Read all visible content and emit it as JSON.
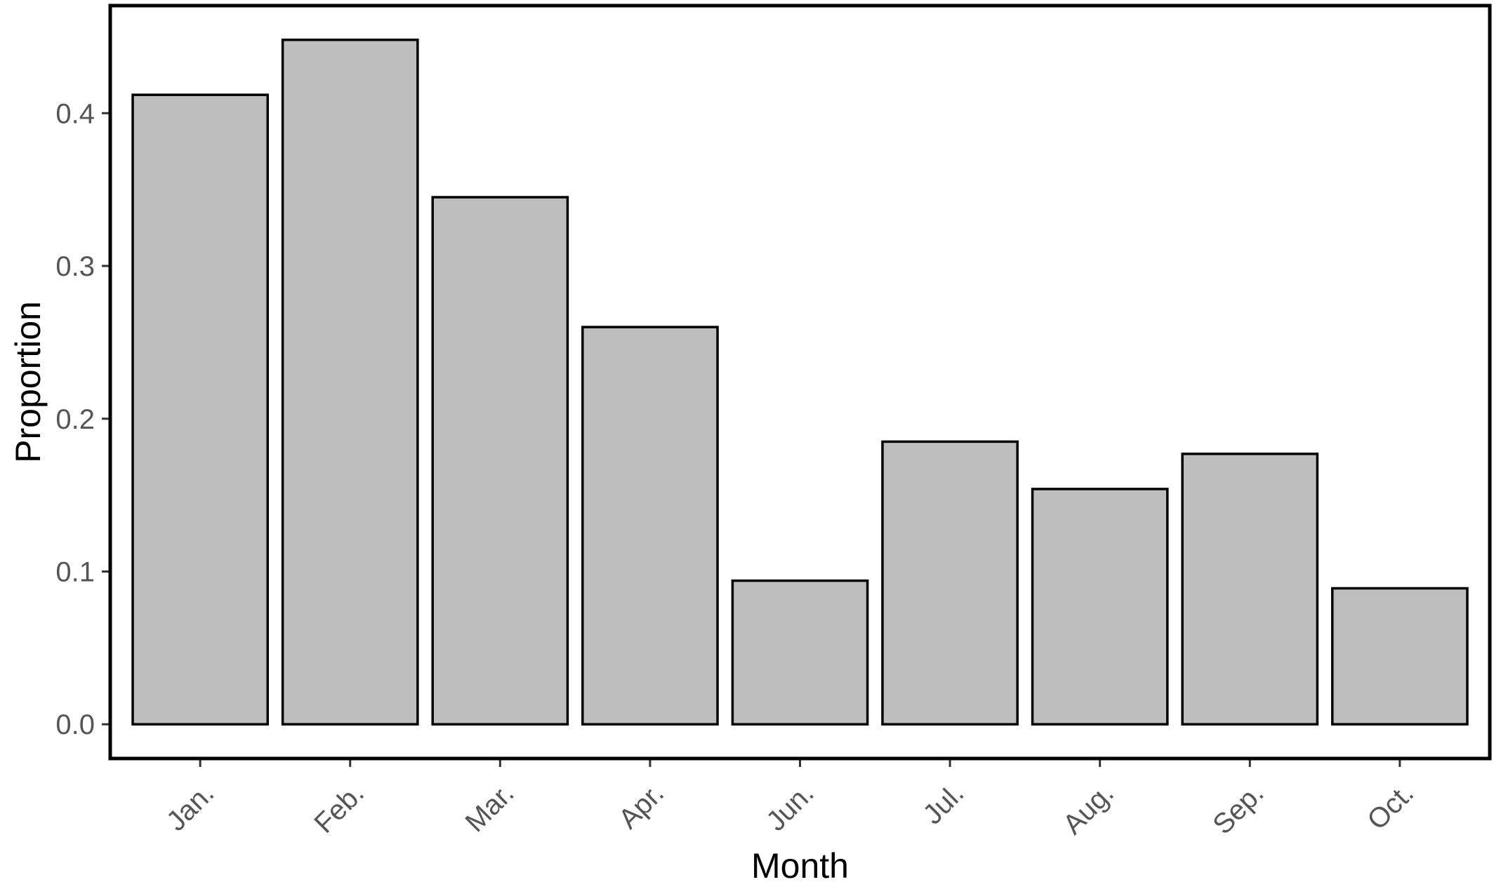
{
  "chart_data": {
    "type": "bar",
    "categories": [
      "Jan.",
      "Feb.",
      "Mar.",
      "Apr.",
      "Jun.",
      "Jul.",
      "Aug.",
      "Sep.",
      "Oct."
    ],
    "values": [
      0.412,
      0.448,
      0.345,
      0.26,
      0.094,
      0.185,
      0.154,
      0.177,
      0.089
    ],
    "title": "",
    "xlabel": "Month",
    "ylabel": "Proportion",
    "ylim": [
      -0.0224,
      0.4704
    ],
    "yticks": [
      0.0,
      0.1,
      0.2,
      0.3,
      0.4
    ],
    "ytick_labels": [
      "0.0",
      "0.1",
      "0.2",
      "0.3",
      "0.4"
    ],
    "grid": false,
    "legend": "none",
    "colors": {
      "bar_fill": "#bebebe",
      "bar_stroke": "#000000",
      "tick_label": "#555555",
      "axis_title": "#000000"
    }
  }
}
